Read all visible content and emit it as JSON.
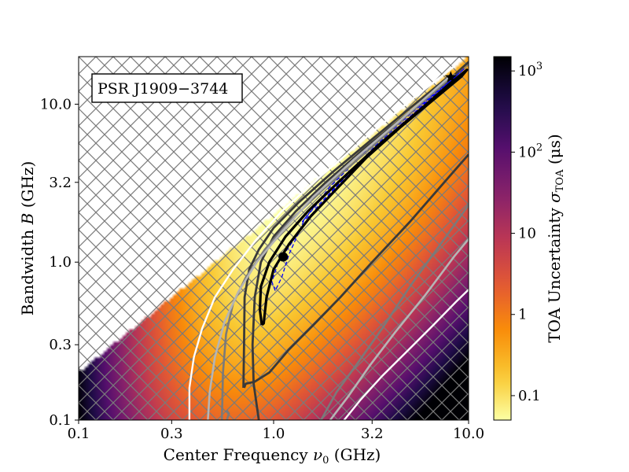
{
  "chart_data": {
    "type": "heatmap",
    "annotation": "PSR J1909−3744",
    "xlabel_main": "Center Frequency ",
    "xlabel_symbol": "ν",
    "xlabel_sub": "0",
    "xlabel_unit": " (GHz)",
    "ylabel_main": "Bandwidth ",
    "ylabel_symbol": "B",
    "ylabel_unit": " (GHz)",
    "colorbar_label_main": "TOA Uncertainty ",
    "colorbar_label_symbol": "σ",
    "colorbar_label_sub": "TOA",
    "colorbar_label_unit": " (μs)",
    "x_scale": "log",
    "y_scale": "log",
    "xlim": [
      0.1,
      10.0
    ],
    "ylim": [
      0.1,
      20.0
    ],
    "x_ticks": [
      {
        "value": 0.1,
        "label": "0.1"
      },
      {
        "value": 0.3,
        "label": "0.3"
      },
      {
        "value": 1.0,
        "label": "1.0"
      },
      {
        "value": 3.2,
        "label": "3.2"
      },
      {
        "value": 10.0,
        "label": "10.0"
      }
    ],
    "y_ticks": [
      {
        "value": 0.1,
        "label": "0.1"
      },
      {
        "value": 0.3,
        "label": "0.3"
      },
      {
        "value": 1.0,
        "label": "1.0"
      },
      {
        "value": 3.2,
        "label": "3.2"
      },
      {
        "value": 10.0,
        "label": "10.0"
      }
    ],
    "colorbar_scale": "log",
    "colorbar_range": [
      0.05,
      1500
    ],
    "colorbar_ticks": [
      {
        "value": 0.1,
        "label": "0.1"
      },
      {
        "value": 1,
        "label": "1"
      },
      {
        "value": 10,
        "label": "10"
      },
      {
        "value": 100,
        "base": "10",
        "exp": "2"
      },
      {
        "value": 1000,
        "base": "10",
        "exp": "3"
      }
    ],
    "colormap": "inferno_r",
    "excluded_region": "B > 2ν₀ (hatched)",
    "marker_dot": {
      "x": 1.12,
      "y": 1.08
    },
    "marker_star": {
      "x": 8.1,
      "y": 14.8
    },
    "contours": [
      {
        "color": "#0000ff",
        "style": "dashed",
        "points": [
          [
            1.02,
            0.66
          ],
          [
            0.98,
            0.75
          ],
          [
            1.05,
            0.98
          ],
          [
            1.3,
            1.45
          ],
          [
            1.7,
            2.3
          ],
          [
            2.5,
            3.8
          ],
          [
            4.2,
            6.8
          ],
          [
            6.7,
            11.5
          ],
          [
            8.8,
            15.5
          ],
          [
            9.5,
            16.8
          ],
          [
            8.2,
            14.3
          ],
          [
            5.2,
            9.1
          ],
          [
            2.95,
            5.0
          ],
          [
            1.95,
            3.0
          ],
          [
            1.45,
            1.9
          ],
          [
            1.2,
            1.12
          ],
          [
            1.1,
            0.8
          ],
          [
            1.02,
            0.66
          ]
        ]
      },
      {
        "color": "#0000ff",
        "style": "dashed",
        "points": [
          [
            1.4,
            1.8
          ],
          [
            1.8,
            2.6
          ],
          [
            2.6,
            4.0
          ],
          [
            4.2,
            6.9
          ],
          [
            6.6,
            11.3
          ],
          [
            8.6,
            15.0
          ],
          [
            7.6,
            13.1
          ],
          [
            5.2,
            9.0
          ],
          [
            3.3,
            5.4
          ],
          [
            2.2,
            3.2
          ],
          [
            1.6,
            2.05
          ],
          [
            1.4,
            1.8
          ]
        ]
      },
      {
        "color": "#000000",
        "style": "solid",
        "width": 3.2,
        "points": [
          [
            0.87,
            0.4
          ],
          [
            0.85,
            0.5
          ],
          [
            0.86,
            0.7
          ],
          [
            0.95,
            1.0
          ],
          [
            1.15,
            1.45
          ],
          [
            1.5,
            2.1
          ],
          [
            2.2,
            3.3
          ],
          [
            3.5,
            5.6
          ],
          [
            5.8,
            9.5
          ],
          [
            8.0,
            13.5
          ],
          [
            9.8,
            16.5
          ],
          [
            9.2,
            15.0
          ],
          [
            6.8,
            11.0
          ],
          [
            4.5,
            7.2
          ],
          [
            3.0,
            4.6
          ],
          [
            2.1,
            2.9
          ],
          [
            1.55,
            1.95
          ],
          [
            1.2,
            1.3
          ],
          [
            1.0,
            0.9
          ],
          [
            0.92,
            0.6
          ],
          [
            0.89,
            0.41
          ],
          [
            0.87,
            0.4
          ]
        ]
      },
      {
        "color": "#3a3a3a",
        "style": "solid",
        "width": 2.8,
        "points": [
          [
            0.84,
            0.1
          ],
          [
            0.79,
            0.17
          ],
          [
            0.78,
            0.3
          ],
          [
            0.8,
            0.6
          ],
          [
            0.86,
            1.0
          ],
          [
            1.0,
            1.45
          ],
          [
            1.3,
            2.1
          ],
          [
            1.85,
            3.2
          ],
          [
            2.9,
            5.2
          ],
          [
            4.9,
            8.8
          ],
          [
            7.8,
            14.0
          ],
          [
            10.0,
            18.5
          ]
        ]
      },
      {
        "color": "#3a3a3a",
        "style": "solid",
        "width": 2.8,
        "points": [
          [
            0.706,
            0.16
          ],
          [
            0.72,
            0.17
          ],
          [
            0.8,
            0.175
          ],
          [
            0.95,
            0.2
          ],
          [
            1.2,
            0.28
          ],
          [
            1.6,
            0.4
          ],
          [
            2.2,
            0.6
          ],
          [
            3.2,
            1.0
          ],
          [
            5.0,
            1.8
          ],
          [
            7.5,
            3.2
          ],
          [
            10.0,
            4.8
          ]
        ]
      },
      {
        "color": "#3a3a3a",
        "style": "solid",
        "width": 2.8,
        "points": [
          [
            0.7,
            0.16
          ],
          [
            0.705,
            0.3
          ],
          [
            0.71,
            0.6
          ],
          [
            0.75,
            0.9
          ],
          [
            0.84,
            1.2
          ],
          [
            1.0,
            1.65
          ],
          [
            1.35,
            2.4
          ],
          [
            2.0,
            3.7
          ],
          [
            3.2,
            6.0
          ],
          [
            5.3,
            10.0
          ],
          [
            8.2,
            15.5
          ]
        ]
      },
      {
        "color": "#7a7a7a",
        "style": "solid",
        "width": 2.6,
        "points": [
          [
            0.575,
            0.1
          ],
          [
            0.59,
            0.11
          ],
          [
            0.575,
            0.115
          ]
        ]
      },
      {
        "color": "#7a7a7a",
        "style": "solid",
        "width": 2.6,
        "points": [
          [
            0.543,
            0.1
          ],
          [
            0.55,
            0.2
          ],
          [
            0.57,
            0.35
          ],
          [
            0.62,
            0.55
          ],
          [
            0.72,
            0.8
          ],
          [
            0.9,
            1.2
          ],
          [
            1.2,
            1.8
          ],
          [
            1.8,
            2.9
          ],
          [
            3.0,
            5.0
          ],
          [
            5.0,
            8.8
          ],
          [
            8.5,
            15.5
          ]
        ]
      },
      {
        "color": "#7a7a7a",
        "style": "solid",
        "width": 2.6,
        "points": [
          [
            1.75,
            0.1
          ],
          [
            2.1,
            0.15
          ],
          [
            2.7,
            0.23
          ],
          [
            3.6,
            0.38
          ],
          [
            5.0,
            0.7
          ],
          [
            7.5,
            1.4
          ],
          [
            10.0,
            2.3
          ]
        ]
      },
      {
        "color": "#b5b5b5",
        "style": "solid",
        "width": 2.6,
        "points": [
          [
            0.46,
            0.1
          ],
          [
            0.47,
            0.15
          ],
          [
            0.5,
            0.25
          ],
          [
            0.56,
            0.42
          ],
          [
            0.66,
            0.65
          ],
          [
            0.82,
            1.0
          ],
          [
            1.1,
            1.55
          ],
          [
            1.6,
            2.6
          ],
          [
            2.6,
            4.5
          ],
          [
            4.5,
            8.0
          ],
          [
            8.0,
            15.0
          ]
        ]
      },
      {
        "color": "#b5b5b5",
        "style": "solid",
        "width": 2.6,
        "points": [
          [
            1.95,
            0.1
          ],
          [
            2.4,
            0.14
          ],
          [
            3.1,
            0.22
          ],
          [
            4.2,
            0.36
          ],
          [
            6.0,
            0.62
          ],
          [
            8.5,
            1.1
          ],
          [
            10.0,
            1.4
          ]
        ]
      },
      {
        "color": "#ffffff",
        "style": "solid",
        "width": 2.4,
        "points": [
          [
            0.37,
            0.1
          ],
          [
            0.37,
            0.16
          ],
          [
            0.39,
            0.25
          ],
          [
            0.43,
            0.38
          ],
          [
            0.5,
            0.6
          ],
          [
            0.62,
            0.9
          ],
          [
            0.8,
            1.35
          ],
          [
            1.1,
            2.1
          ],
          [
            1.7,
            3.4
          ],
          [
            2.9,
            6.0
          ],
          [
            5.0,
            10.5
          ],
          [
            8.5,
            17.5
          ]
        ]
      },
      {
        "color": "#ffffff",
        "style": "solid",
        "width": 2.4,
        "points": [
          [
            2.3,
            0.1
          ],
          [
            2.8,
            0.135
          ],
          [
            3.6,
            0.19
          ],
          [
            4.8,
            0.27
          ],
          [
            6.6,
            0.4
          ],
          [
            8.6,
            0.56
          ],
          [
            10.0,
            0.67
          ]
        ]
      }
    ]
  }
}
